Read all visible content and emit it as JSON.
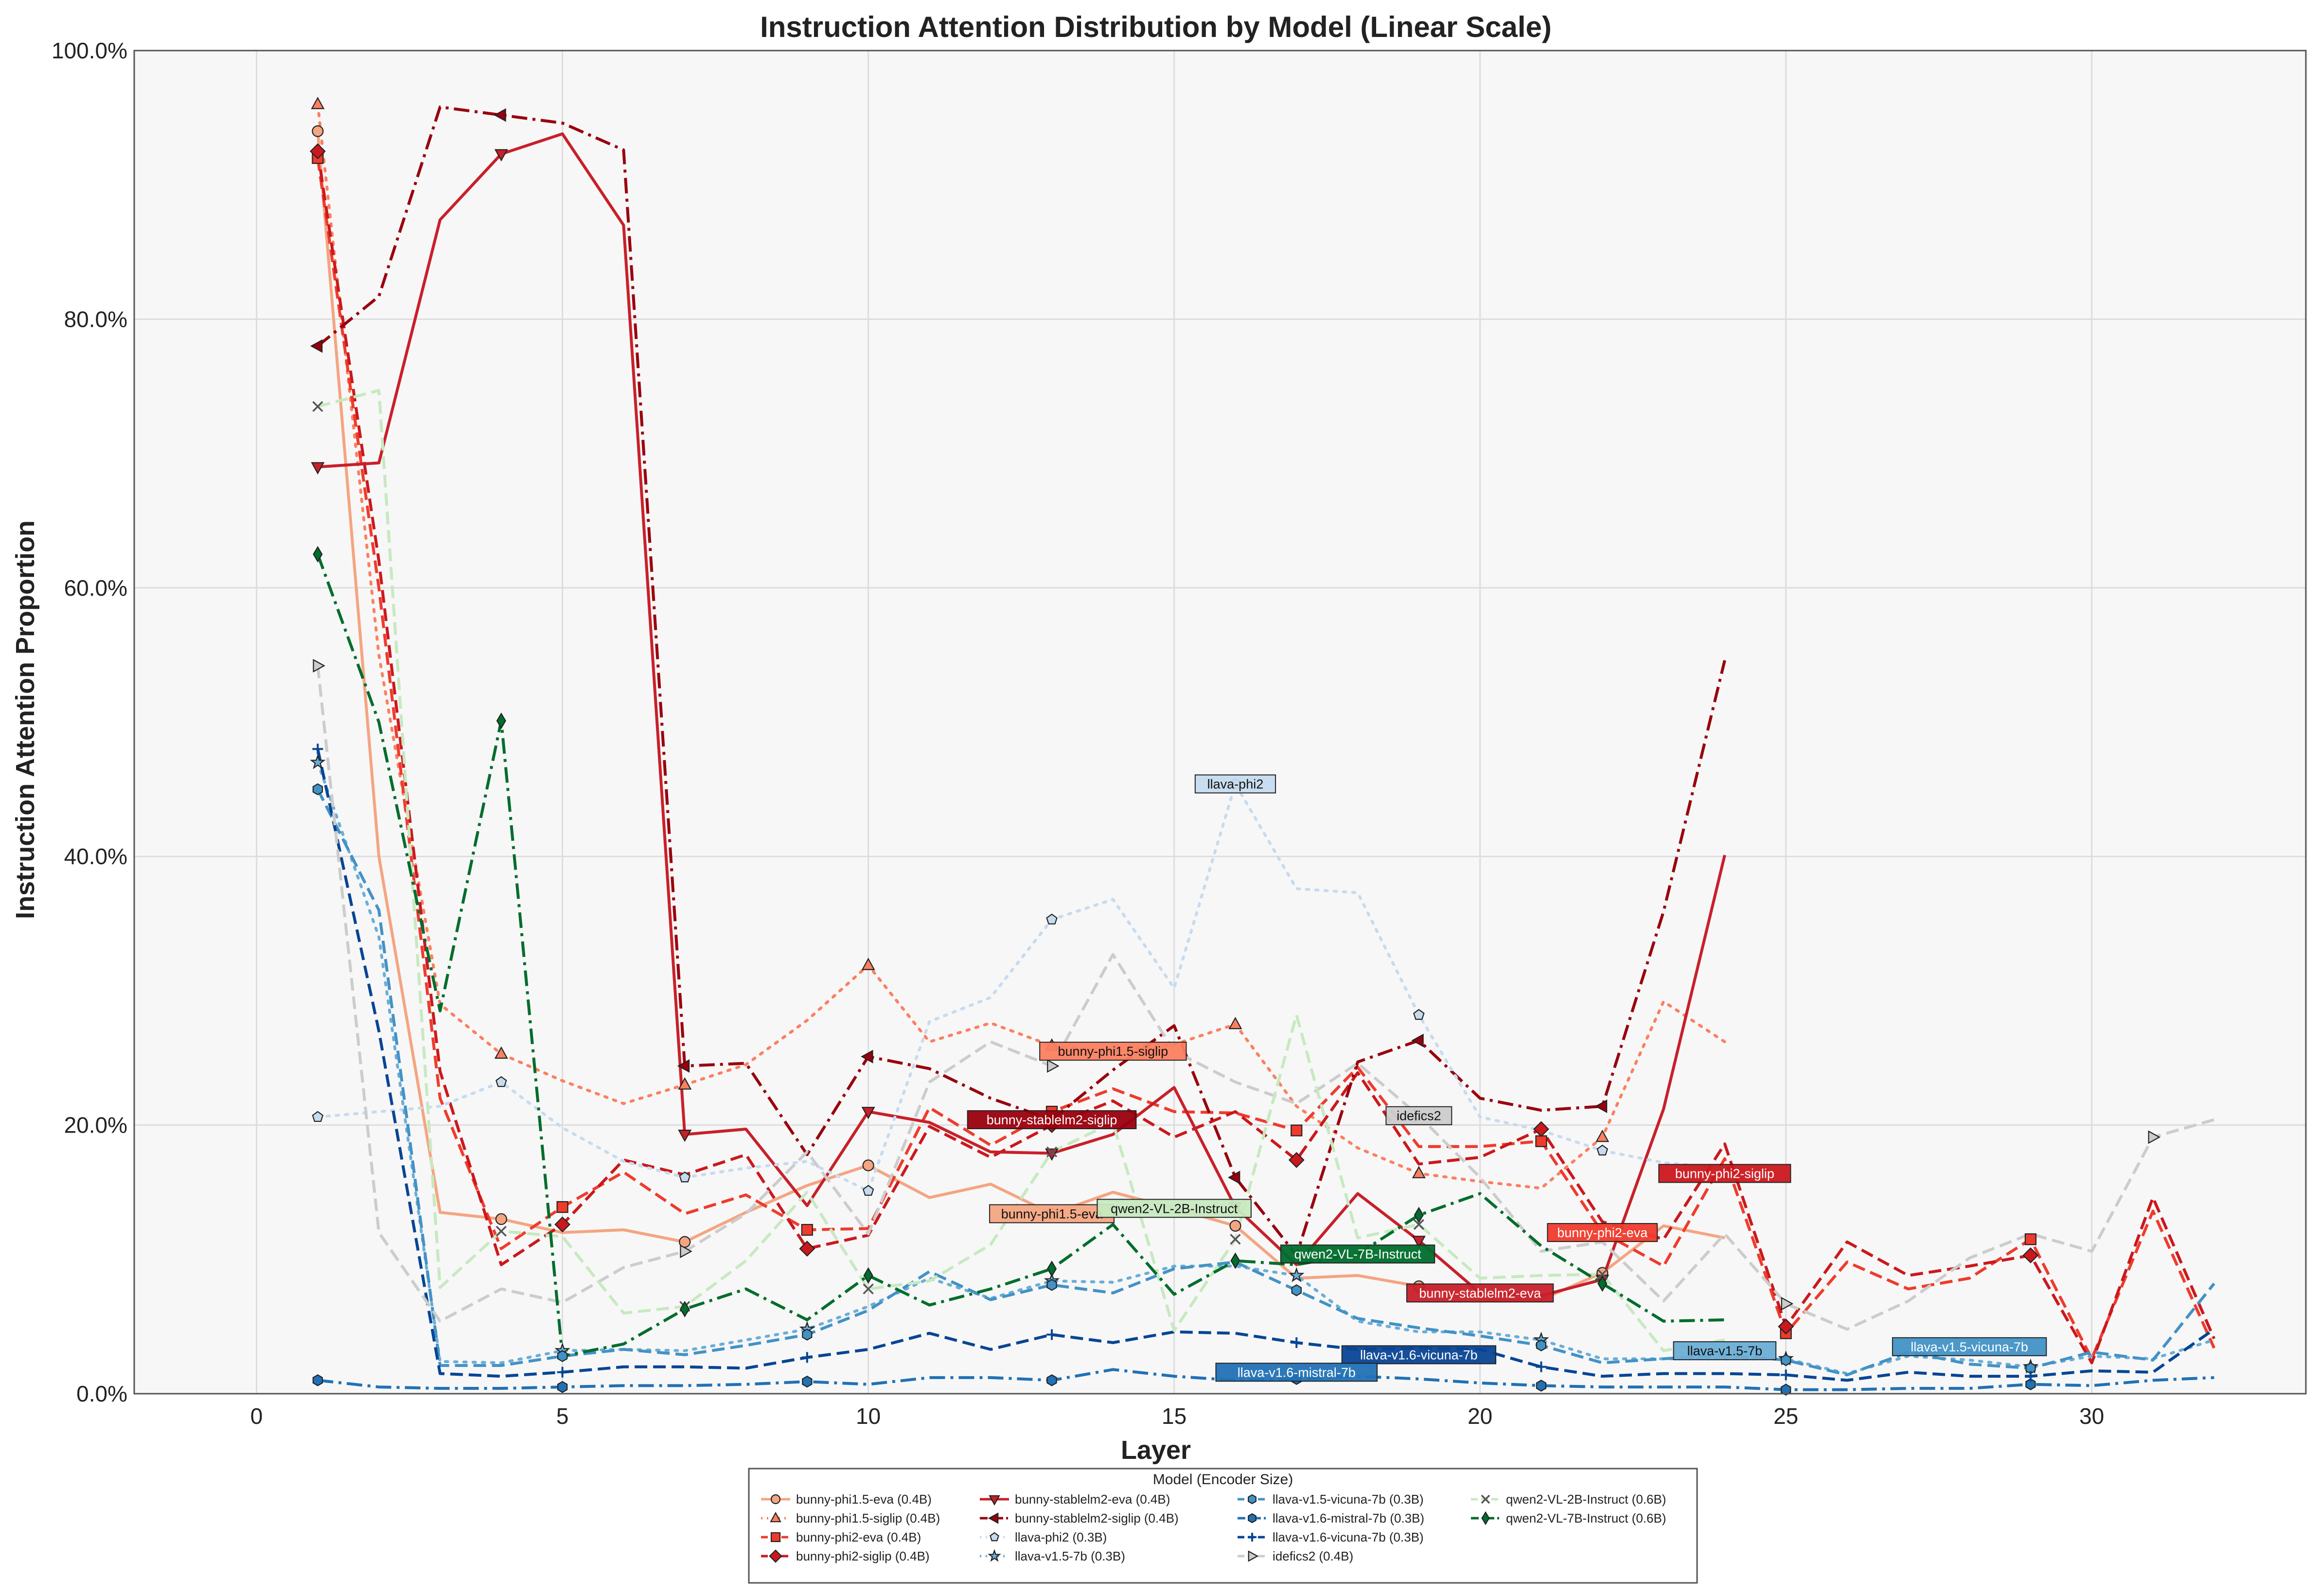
{
  "chart_data": {
    "type": "line",
    "title": "Instruction Attention Distribution by Model (Linear Scale)",
    "xlabel": "Layer",
    "ylabel": "Instruction Attention Proportion",
    "xlim": [
      -2,
      33.5
    ],
    "ylim": [
      0,
      100
    ],
    "x_ticks": [
      0,
      5,
      10,
      15,
      20,
      25,
      30
    ],
    "y_ticks": [
      0,
      20,
      40,
      60,
      80,
      100
    ],
    "y_tick_format": "percent_1dp",
    "grid": true,
    "legend": {
      "title": "Model (Encoder Size)",
      "placement": "bottom-center",
      "columns": 4
    },
    "series": [
      {
        "name": "bunny-phi1.5-eva (0.4B)",
        "short": "bunny-phi1.5-eva",
        "color": "#f4a582",
        "dash": "solid",
        "marker": "circle",
        "marker_every": 3,
        "x": [
          1,
          2,
          3,
          4,
          5,
          6,
          7,
          8,
          9,
          10,
          11,
          12,
          13,
          14,
          15,
          16,
          17,
          18,
          19,
          20,
          21,
          22,
          23,
          24
        ],
        "y": [
          94,
          40,
          13.5,
          13,
          12,
          12.2,
          11.3,
          13.5,
          15.5,
          17.0,
          14.6,
          15.6,
          13.4,
          15.0,
          13.8,
          12.5,
          8.6,
          8.8,
          8.0,
          7.0,
          7.0,
          9.0,
          12.5,
          11.6
        ]
      },
      {
        "name": "bunny-phi1.5-siglip (0.4B)",
        "short": "bunny-phi1.5-siglip",
        "color": "#fb8060",
        "dash": "dotted",
        "marker": "triangle-up",
        "marker_every": 3,
        "x": [
          1,
          2,
          3,
          4,
          5,
          6,
          7,
          8,
          9,
          10,
          11,
          12,
          13,
          14,
          15,
          16,
          17,
          18,
          19,
          20,
          21,
          22,
          23,
          24
        ],
        "y": [
          96,
          55,
          29,
          25.3,
          23.3,
          21.6,
          23.0,
          24.5,
          27.8,
          31.9,
          26.2,
          27.6,
          25.9,
          25.5,
          26.0,
          27.5,
          21.4,
          18.3,
          16.4,
          15.8,
          15.3,
          19.1,
          29.2,
          26.2
        ]
      },
      {
        "name": "bunny-phi2-eva (0.4B)",
        "short": "bunny-phi2-eva",
        "color": "#ef3b2c",
        "dash": "dashed",
        "marker": "square",
        "marker_every": 4,
        "x": [
          1,
          2,
          3,
          4,
          5,
          6,
          7,
          8,
          9,
          10,
          11,
          12,
          13,
          14,
          15,
          16,
          17,
          18,
          19,
          20,
          21,
          22,
          23,
          24,
          25,
          26,
          27,
          28,
          29,
          30,
          31,
          32
        ],
        "y": [
          92,
          60,
          22,
          10.8,
          13.9,
          16.5,
          13.4,
          14.8,
          12.2,
          12.3,
          21.3,
          18.5,
          21.0,
          22.7,
          21.0,
          20.9,
          19.6,
          24.3,
          18.4,
          18.4,
          18.8,
          12.0,
          9.5,
          17.5,
          4.5,
          9.8,
          7.8,
          8.6,
          11.5,
          2.6,
          13.6,
          3.4
        ]
      },
      {
        "name": "bunny-phi2-siglip (0.4B)",
        "short": "bunny-phi2-siglip",
        "color": "#cb181d",
        "dash": "dashed",
        "marker": "diamond",
        "marker_every": 4,
        "x": [
          1,
          2,
          3,
          4,
          5,
          6,
          7,
          8,
          9,
          10,
          11,
          12,
          13,
          14,
          15,
          16,
          17,
          18,
          19,
          20,
          21,
          22,
          23,
          24,
          25,
          26,
          27,
          28,
          29,
          30,
          31,
          32
        ],
        "y": [
          92.5,
          62,
          24,
          9.6,
          12.6,
          17.4,
          16.3,
          17.8,
          10.8,
          11.8,
          19.9,
          17.6,
          20.0,
          21.8,
          19.1,
          21.0,
          17.4,
          23.9,
          17.1,
          17.6,
          19.7,
          12.8,
          11.5,
          18.6,
          5.0,
          11.3,
          8.8,
          9.5,
          10.3,
          2.3,
          14.6,
          4.1
        ]
      },
      {
        "name": "bunny-stablelm2-eva (0.4B)",
        "short": "bunny-stablelm2-eva",
        "color": "#c8202a",
        "dash": "solid",
        "marker": "triangle-down",
        "marker_every": 3,
        "x": [
          1,
          2,
          3,
          4,
          5,
          6,
          7,
          8,
          9,
          10,
          11,
          12,
          13,
          14,
          15,
          16,
          17,
          18,
          19,
          20,
          21,
          22,
          23,
          24
        ],
        "y": [
          69,
          69.3,
          87.4,
          92.3,
          93.8,
          87.0,
          19.3,
          19.7,
          14.0,
          21.0,
          20.2,
          18.0,
          17.9,
          19.3,
          22.8,
          13.9,
          9.6,
          14.9,
          11.4,
          7.5,
          7.3,
          8.5,
          21.2,
          40.1
        ]
      },
      {
        "name": "bunny-stablelm2-siglip (0.4B)",
        "short": "bunny-stablelm2-siglip",
        "color": "#99000d",
        "dash": "dashdot",
        "marker": "triangle-left",
        "marker_every": 3,
        "x": [
          1,
          2,
          3,
          4,
          5,
          6,
          7,
          8,
          9,
          10,
          11,
          12,
          13,
          14,
          15,
          16,
          17,
          18,
          19,
          20,
          21,
          22,
          23,
          24
        ],
        "y": [
          78,
          81.7,
          95.8,
          95.2,
          94.6,
          92.6,
          24.4,
          24.6,
          17.8,
          25.1,
          24.2,
          22.0,
          20.4,
          24.1,
          27.4,
          16.1,
          10.3,
          24.7,
          26.3,
          22.0,
          21.1,
          21.4,
          35.9,
          54.6
        ]
      },
      {
        "name": "llava-phi2 (0.3B)",
        "short": "llava-phi2",
        "color": "#c6dbef",
        "dash": "dotted",
        "marker": "pentagon",
        "marker_every": 3,
        "x": [
          1,
          2,
          3,
          4,
          5,
          6,
          7,
          8,
          9,
          10,
          11,
          12,
          13,
          14,
          15,
          16,
          17,
          18,
          19,
          20,
          21,
          22,
          23,
          24
        ],
        "y": [
          20.6,
          21.0,
          21.4,
          23.2,
          19.8,
          17.3,
          16.1,
          16.8,
          17.3,
          15.1,
          27.7,
          29.5,
          35.3,
          36.8,
          30.2,
          45.4,
          37.6,
          37.3,
          28.2,
          20.6,
          19.6,
          18.1,
          17.2,
          16.8
        ]
      },
      {
        "name": "llava-v1.5-7b (0.3B)",
        "short": "llava-v1.5-7b",
        "color": "#6baed6",
        "dash": "dotted",
        "marker": "star",
        "marker_every": 4,
        "x": [
          1,
          2,
          3,
          4,
          5,
          6,
          7,
          8,
          9,
          10,
          11,
          12,
          13,
          14,
          15,
          16,
          17,
          18,
          19,
          20,
          21,
          22,
          23,
          24,
          25,
          26,
          27,
          28,
          29,
          30,
          31,
          32
        ],
        "y": [
          47,
          34,
          2.4,
          2.3,
          3.2,
          3.3,
          3.2,
          4.0,
          4.8,
          6.5,
          8.6,
          7.1,
          8.4,
          8.3,
          9.5,
          9.5,
          8.8,
          5.4,
          4.6,
          4.6,
          4.0,
          2.6,
          2.6,
          2.6,
          2.6,
          1.5,
          2.8,
          2.5,
          2.0,
          2.8,
          2.6,
          4.0
        ]
      },
      {
        "name": "llava-v1.5-vicuna-7b (0.3B)",
        "short": "llava-v1.5-vicuna-7b",
        "color": "#4292c6",
        "dash": "dashed",
        "marker": "hexagon",
        "marker_every": 4,
        "x": [
          1,
          2,
          3,
          4,
          5,
          6,
          7,
          8,
          9,
          10,
          11,
          12,
          13,
          14,
          15,
          16,
          17,
          18,
          19,
          20,
          21,
          22,
          23,
          24,
          25,
          26,
          27,
          28,
          29,
          30,
          31,
          32
        ],
        "y": [
          45,
          36,
          2.1,
          2.1,
          2.8,
          3.3,
          2.9,
          3.6,
          4.4,
          6.2,
          9.1,
          7.0,
          8.1,
          7.5,
          9.3,
          9.8,
          7.7,
          5.6,
          4.9,
          4.3,
          3.6,
          2.3,
          2.6,
          2.9,
          2.5,
          1.4,
          3.1,
          2.2,
          1.9,
          3.1,
          2.5,
          8.2
        ]
      },
      {
        "name": "llava-v1.6-mistral-7b (0.3B)",
        "short": "llava-v1.6-mistral-7b",
        "color": "#2171b5",
        "dash": "dashdot",
        "marker": "hexagon",
        "marker_every": 4,
        "x": [
          1,
          2,
          3,
          4,
          5,
          6,
          7,
          8,
          9,
          10,
          11,
          12,
          13,
          14,
          15,
          16,
          17,
          18,
          19,
          20,
          21,
          22,
          23,
          24,
          25,
          26,
          27,
          28,
          29,
          30,
          31,
          32
        ],
        "y": [
          1.0,
          0.5,
          0.4,
          0.4,
          0.5,
          0.6,
          0.6,
          0.7,
          0.9,
          0.7,
          1.2,
          1.2,
          1.0,
          1.8,
          1.3,
          1.0,
          1.1,
          1.3,
          1.1,
          0.8,
          0.6,
          0.5,
          0.5,
          0.5,
          0.3,
          0.3,
          0.4,
          0.4,
          0.7,
          0.6,
          1.0,
          1.2
        ]
      },
      {
        "name": "llava-v1.6-vicuna-7b (0.3B)",
        "short": "llava-v1.6-vicuna-7b",
        "color": "#084594",
        "dash": "dashed",
        "marker": "tick",
        "marker_every": 4,
        "x": [
          1,
          2,
          3,
          4,
          5,
          6,
          7,
          8,
          9,
          10,
          11,
          12,
          13,
          14,
          15,
          16,
          17,
          18,
          19,
          20,
          21,
          22,
          23,
          24,
          25,
          26,
          27,
          28,
          29,
          30,
          31,
          32
        ],
        "y": [
          48,
          27,
          1.5,
          1.3,
          1.6,
          2.0,
          2.0,
          1.9,
          2.7,
          3.3,
          4.5,
          3.3,
          4.4,
          3.8,
          4.6,
          4.5,
          3.8,
          3.3,
          3.4,
          3.3,
          2.0,
          1.3,
          1.5,
          1.5,
          1.4,
          1.0,
          1.6,
          1.3,
          1.3,
          1.7,
          1.6,
          4.8
        ]
      },
      {
        "name": "idefics2 (0.4B)",
        "short": "idefics2",
        "color": "#cccccc",
        "dash": "dashed",
        "marker": "triangle-right",
        "marker_every": 6,
        "x": [
          1,
          2,
          3,
          4,
          5,
          6,
          7,
          8,
          9,
          10,
          11,
          12,
          13,
          14,
          15,
          16,
          17,
          18,
          19,
          20,
          21,
          22,
          23,
          24,
          25,
          26,
          27,
          28,
          29,
          30,
          31,
          32
        ],
        "y": [
          54.2,
          12.0,
          5.4,
          7.8,
          6.8,
          9.4,
          10.6,
          13.4,
          18.0,
          11.9,
          23.2,
          26.2,
          24.4,
          32.7,
          25.5,
          23.2,
          21.6,
          24.6,
          20.7,
          16.1,
          10.6,
          11.3,
          6.9,
          11.9,
          6.7,
          4.8,
          6.9,
          10.1,
          11.9,
          10.6,
          19.1,
          20.4
        ]
      },
      {
        "name": "qwen2-VL-2B-Instruct (0.6B)",
        "short": "qwen2-VL-2B-Instruct",
        "color": "#c7e9c0",
        "dash": "dashed",
        "marker": "x",
        "marker_every": 3,
        "x": [
          1,
          2,
          3,
          4,
          5,
          6,
          7,
          8,
          9,
          10,
          11,
          12,
          13,
          14,
          15,
          16,
          17,
          18,
          19,
          20,
          21,
          22,
          23,
          24
        ],
        "y": [
          73.5,
          74.7,
          7.9,
          12.1,
          11.7,
          6.0,
          6.5,
          9.9,
          15.0,
          7.8,
          8.4,
          11.1,
          18.0,
          20.2,
          4.7,
          11.5,
          28.2,
          11.6,
          12.6,
          8.6,
          8.8,
          8.9,
          3.2,
          4.0
        ]
      },
      {
        "name": "qwen2-VL-7B-Instruct (0.6B)",
        "short": "qwen2-VL-7B-Instruct",
        "color": "#006d2c",
        "dash": "dashdot",
        "marker": "thin-diamond",
        "marker_every": 3,
        "x": [
          1,
          2,
          3,
          4,
          5,
          6,
          7,
          8,
          9,
          10,
          11,
          12,
          13,
          14,
          15,
          16,
          17,
          18,
          19,
          20,
          21,
          22,
          23,
          24
        ],
        "y": [
          62.5,
          50.0,
          28.5,
          50.1,
          2.8,
          3.7,
          6.3,
          7.8,
          5.5,
          8.8,
          6.6,
          7.8,
          9.3,
          12.6,
          7.4,
          9.9,
          9.6,
          10.4,
          13.3,
          14.9,
          11.0,
          8.2,
          5.4,
          5.5
        ]
      }
    ],
    "annotations": [
      {
        "text": "llava-phi2",
        "x": 16,
        "y": 45.4,
        "series": "llava-phi2 (0.3B)"
      },
      {
        "text": "bunny-phi1.5-siglip",
        "x": 14,
        "y": 25.5,
        "series": "bunny-phi1.5-siglip (0.4B)"
      },
      {
        "text": "bunny-stablelm2-siglip",
        "x": 13,
        "y": 20.4,
        "series": "bunny-stablelm2-siglip (0.4B)"
      },
      {
        "text": "idefics2",
        "x": 19,
        "y": 20.7,
        "series": "idefics2 (0.4B)"
      },
      {
        "text": "bunny-phi1.5-eva",
        "x": 13,
        "y": 13.4,
        "series": "bunny-phi1.5-eva (0.4B)"
      },
      {
        "text": "qwen2-VL-2B-Instruct",
        "x": 15,
        "y": 13.8,
        "series": "qwen2-VL-2B-Instruct (0.6B)"
      },
      {
        "text": "bunny-phi2-siglip",
        "x": 24,
        "y": 16.4,
        "series": "bunny-phi2-siglip (0.4B)"
      },
      {
        "text": "bunny-phi2-eva",
        "x": 22,
        "y": 12.0,
        "series": "bunny-phi2-eva (0.4B)"
      },
      {
        "text": "qwen2-VL-7B-Instruct",
        "x": 18,
        "y": 10.4,
        "series": "qwen2-VL-7B-Instruct (0.6B)"
      },
      {
        "text": "bunny-stablelm2-eva",
        "x": 20,
        "y": 7.5,
        "series": "bunny-stablelm2-eva (0.4B)"
      },
      {
        "text": "llava-v1.5-7b",
        "x": 24,
        "y": 3.2,
        "series": "llava-v1.5-7b (0.3B)"
      },
      {
        "text": "llava-v1.5-vicuna-7b",
        "x": 28,
        "y": 3.5,
        "series": "llava-v1.5-vicuna-7b (0.3B)"
      },
      {
        "text": "llava-v1.6-vicuna-7b",
        "x": 19,
        "y": 2.9,
        "series": "llava-v1.6-vicuna-7b (0.3B)"
      },
      {
        "text": "llava-v1.6-mistral-7b",
        "x": 17,
        "y": 1.6,
        "series": "llava-v1.6-mistral-7b (0.3B)"
      }
    ]
  }
}
